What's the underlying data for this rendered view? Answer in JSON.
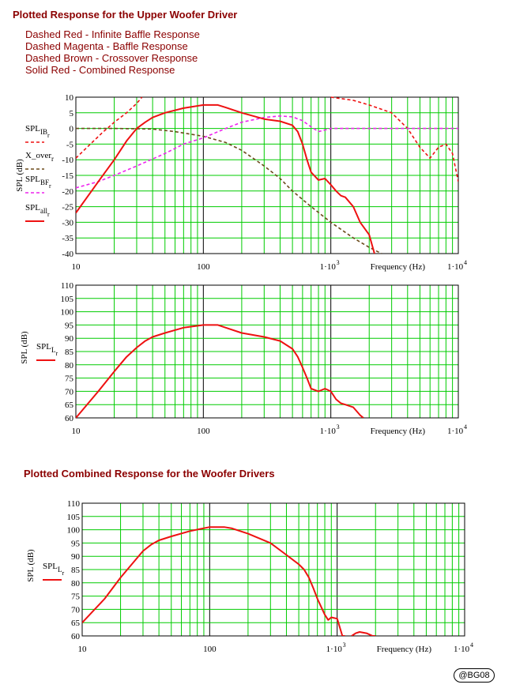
{
  "titles": {
    "upper": "Plotted Response for the Upper Woofer Driver",
    "combined": "Plotted Combined Response for the Woofer Drivers"
  },
  "descriptions": [
    "Dashed Red - Infinite Baffle Response",
    "Dashed Magenta - Baffle Response",
    "Dashed Brown - Crossover Response",
    "Solid Red - Combined Response"
  ],
  "badge": "@BG08",
  "colors": {
    "grid": "#00cc00",
    "red": "#ee1111",
    "magenta": "#ee22ee",
    "brown": "#6b4a1a"
  },
  "chart_data": [
    {
      "type": "line",
      "xscale": "log",
      "xlim": [
        10,
        10000
      ],
      "ylim": [
        -40,
        10
      ],
      "yticks": [
        10,
        5,
        0,
        -5,
        -10,
        -15,
        -20,
        -25,
        -30,
        -35,
        -40
      ],
      "xticks": [
        "10",
        "100",
        "1·10³",
        "1·10⁴"
      ],
      "xlabel": "Frequency (Hz)",
      "ylabel": "SPL (dB)",
      "series": [
        {
          "name": "SPL_IB_r",
          "style": "dashed",
          "color": "#ee1111",
          "x": [
            10,
            13,
            16,
            20,
            25,
            30,
            33,
            40,
            1000,
            1500,
            2000,
            3000,
            4000,
            5000,
            6000,
            7000,
            8000,
            9000,
            10000
          ],
          "y": [
            -9.5,
            -5,
            -1.5,
            2,
            5,
            8,
            10,
            null,
            10,
            9,
            7.5,
            5,
            0,
            -6,
            -9.5,
            -6,
            -5,
            -8,
            -17
          ]
        },
        {
          "name": "X_over_r",
          "style": "dashed",
          "color": "#6b4a1a",
          "x": [
            10,
            20,
            40,
            60,
            100,
            150,
            200,
            300,
            400,
            500,
            700,
            1000,
            1500,
            2000,
            2500
          ],
          "y": [
            0,
            0,
            -0.2,
            -1,
            -2.5,
            -4.5,
            -7,
            -12,
            -16,
            -20,
            -25,
            -30,
            -35,
            -38,
            -40
          ]
        },
        {
          "name": "SPL_BF_r",
          "style": "dashed",
          "color": "#ee22ee",
          "x": [
            10,
            15,
            20,
            30,
            50,
            70,
            100,
            150,
            200,
            300,
            400,
            500,
            600,
            700,
            800,
            1000,
            1500,
            2000,
            3000,
            5000,
            10000
          ],
          "y": [
            -19,
            -17,
            -15,
            -12,
            -8,
            -5,
            -3,
            0,
            2,
            3.5,
            4,
            3.7,
            2.5,
            0.5,
            -1,
            0,
            0,
            0,
            0,
            0,
            0
          ]
        },
        {
          "name": "SPL_all_r",
          "style": "solid",
          "color": "#ee1111",
          "x": [
            10,
            15,
            20,
            25,
            30,
            35,
            40,
            50,
            70,
            100,
            130,
            150,
            200,
            300,
            400,
            500,
            550,
            600,
            650,
            700,
            800,
            900,
            1000,
            1100,
            1200,
            1300,
            1500,
            1700,
            2000,
            2200
          ],
          "y": [
            -27,
            -17,
            -10,
            -4,
            0,
            2,
            3.5,
            5,
            6.5,
            7.5,
            7.5,
            6.7,
            5,
            3,
            2.3,
            1,
            -1,
            -5,
            -10,
            -14,
            -16.5,
            -16,
            -18,
            -20,
            -21.5,
            -22,
            -25,
            -30,
            -34,
            -40
          ]
        }
      ]
    },
    {
      "type": "line",
      "xscale": "log",
      "xlim": [
        10,
        10000
      ],
      "ylim": [
        60,
        110
      ],
      "yticks": [
        110,
        105,
        100,
        95,
        90,
        85,
        80,
        75,
        70,
        65,
        60
      ],
      "xticks": [
        "10",
        "100",
        "1·10³",
        "1·10⁴"
      ],
      "xlabel": "Frequency (Hz)",
      "ylabel": "SPL (dB)",
      "series": [
        {
          "name": "SPL_L_r",
          "style": "solid",
          "color": "#ee1111",
          "x": [
            10,
            15,
            20,
            25,
            30,
            35,
            40,
            50,
            70,
            100,
            130,
            150,
            200,
            300,
            400,
            500,
            550,
            600,
            650,
            700,
            800,
            900,
            1000,
            1100,
            1200,
            1300,
            1500,
            1700,
            1800
          ],
          "y": [
            60,
            70,
            77.5,
            83,
            86.5,
            89,
            90.5,
            92,
            94,
            95,
            95,
            94,
            92,
            90.5,
            89,
            86,
            83,
            79,
            75,
            71,
            70,
            71,
            70,
            67,
            65.5,
            65,
            64,
            61,
            60
          ]
        }
      ]
    },
    {
      "type": "line",
      "xscale": "log",
      "xlim": [
        10,
        10000
      ],
      "ylim": [
        60,
        110
      ],
      "yticks": [
        110,
        105,
        100,
        95,
        90,
        85,
        80,
        75,
        70,
        65,
        60
      ],
      "xticks": [
        "10",
        "100",
        "1·10³",
        "1·10⁴"
      ],
      "xlabel": "Frequency (Hz)",
      "ylabel": "SPL (dB)",
      "series": [
        {
          "name": "SPL_L_r",
          "style": "solid",
          "color": "#ee1111",
          "x": [
            10,
            15,
            20,
            25,
            30,
            35,
            40,
            50,
            70,
            100,
            130,
            150,
            200,
            300,
            400,
            500,
            550,
            600,
            650,
            700,
            800,
            850,
            900,
            1000,
            1100,
            1150,
            1200,
            1300,
            1400,
            1500,
            1700,
            1900,
            2000
          ],
          "y": [
            65,
            74,
            82,
            87.5,
            92,
            94.5,
            96,
            97.5,
            99.5,
            101,
            101,
            100.5,
            98.5,
            95,
            90.5,
            87,
            85,
            82,
            78,
            74,
            68,
            66,
            67,
            66.5,
            60,
            60,
            null,
            60,
            61,
            61.5,
            61,
            60,
            60
          ]
        }
      ]
    }
  ]
}
